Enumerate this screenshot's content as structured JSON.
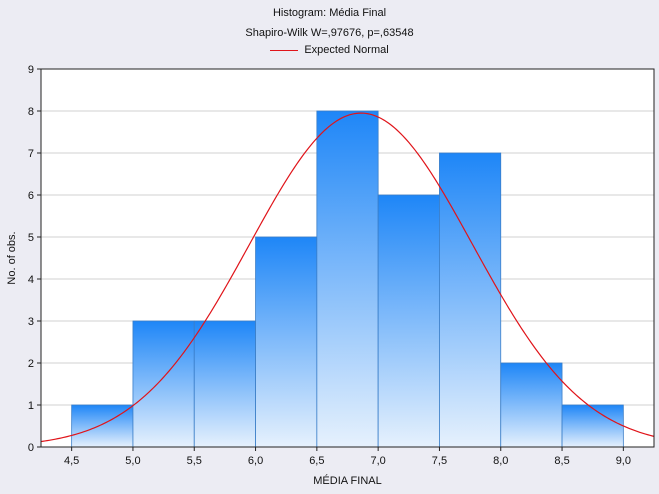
{
  "chart_data": {
    "type": "bar",
    "title": "Histogram: Média Final",
    "subtitle": "Shapiro-Wilk W=,97676, p=,63548",
    "xlabel": "MÉDIA FINAL",
    "ylabel": "No. of obs.",
    "legend": [
      "Expected Normal"
    ],
    "legend_position": "top",
    "bins": [
      {
        "from": 4.5,
        "to": 5.0,
        "count": 1
      },
      {
        "from": 5.0,
        "to": 5.5,
        "count": 3
      },
      {
        "from": 5.5,
        "to": 6.0,
        "count": 3
      },
      {
        "from": 6.0,
        "to": 6.5,
        "count": 5
      },
      {
        "from": 6.5,
        "to": 7.0,
        "count": 8
      },
      {
        "from": 7.0,
        "to": 7.5,
        "count": 6
      },
      {
        "from": 7.5,
        "to": 8.0,
        "count": 7
      },
      {
        "from": 8.0,
        "to": 8.5,
        "count": 2
      },
      {
        "from": 8.5,
        "to": 9.0,
        "count": 1
      }
    ],
    "expected_normal": {
      "mean": 6.86,
      "sd": 0.91,
      "peak": 7.95
    },
    "xlim": [
      4.25,
      9.25
    ],
    "ylim": [
      0,
      9
    ],
    "x_ticks": [
      "4,5",
      "5,0",
      "5,5",
      "6,0",
      "6,5",
      "7,0",
      "7,5",
      "8,0",
      "8,5",
      "9,0"
    ],
    "y_ticks": [
      "0",
      "1",
      "2",
      "3",
      "4",
      "5",
      "6",
      "7",
      "8",
      "9"
    ],
    "grid": true,
    "colors": {
      "bar_top": "#1e86f7",
      "bar_bottom": "#e6f1fd",
      "bar_edge": "#3a7ec8",
      "curve": "#e0141a",
      "plot_bg": "#ffffff",
      "page_bg": "#ececf3"
    }
  }
}
